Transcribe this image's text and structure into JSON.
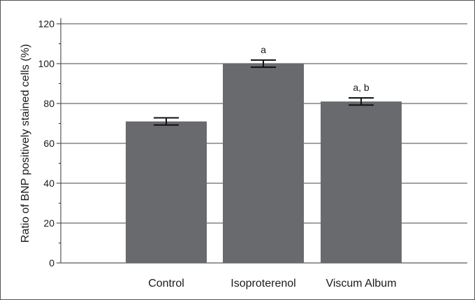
{
  "colors": {
    "bar": "#696a6e",
    "grid": "#444444",
    "axis": "#333333",
    "error_bar": "#111111",
    "frame": "#555555"
  },
  "chart_data": {
    "type": "bar",
    "title": "",
    "xlabel": "",
    "ylabel": "Ratio of BNP positively stained cells (%)",
    "ylim": [
      0,
      120
    ],
    "yticks": [
      0,
      20,
      40,
      60,
      80,
      100,
      120
    ],
    "categories": [
      "Control",
      "Isoproterenol",
      "Viscum Album"
    ],
    "values": [
      71,
      100,
      81
    ],
    "error": [
      1.8,
      1.8,
      1.8
    ],
    "annotations": [
      "",
      "a",
      "a, b"
    ],
    "grid": true,
    "legend": "none"
  }
}
